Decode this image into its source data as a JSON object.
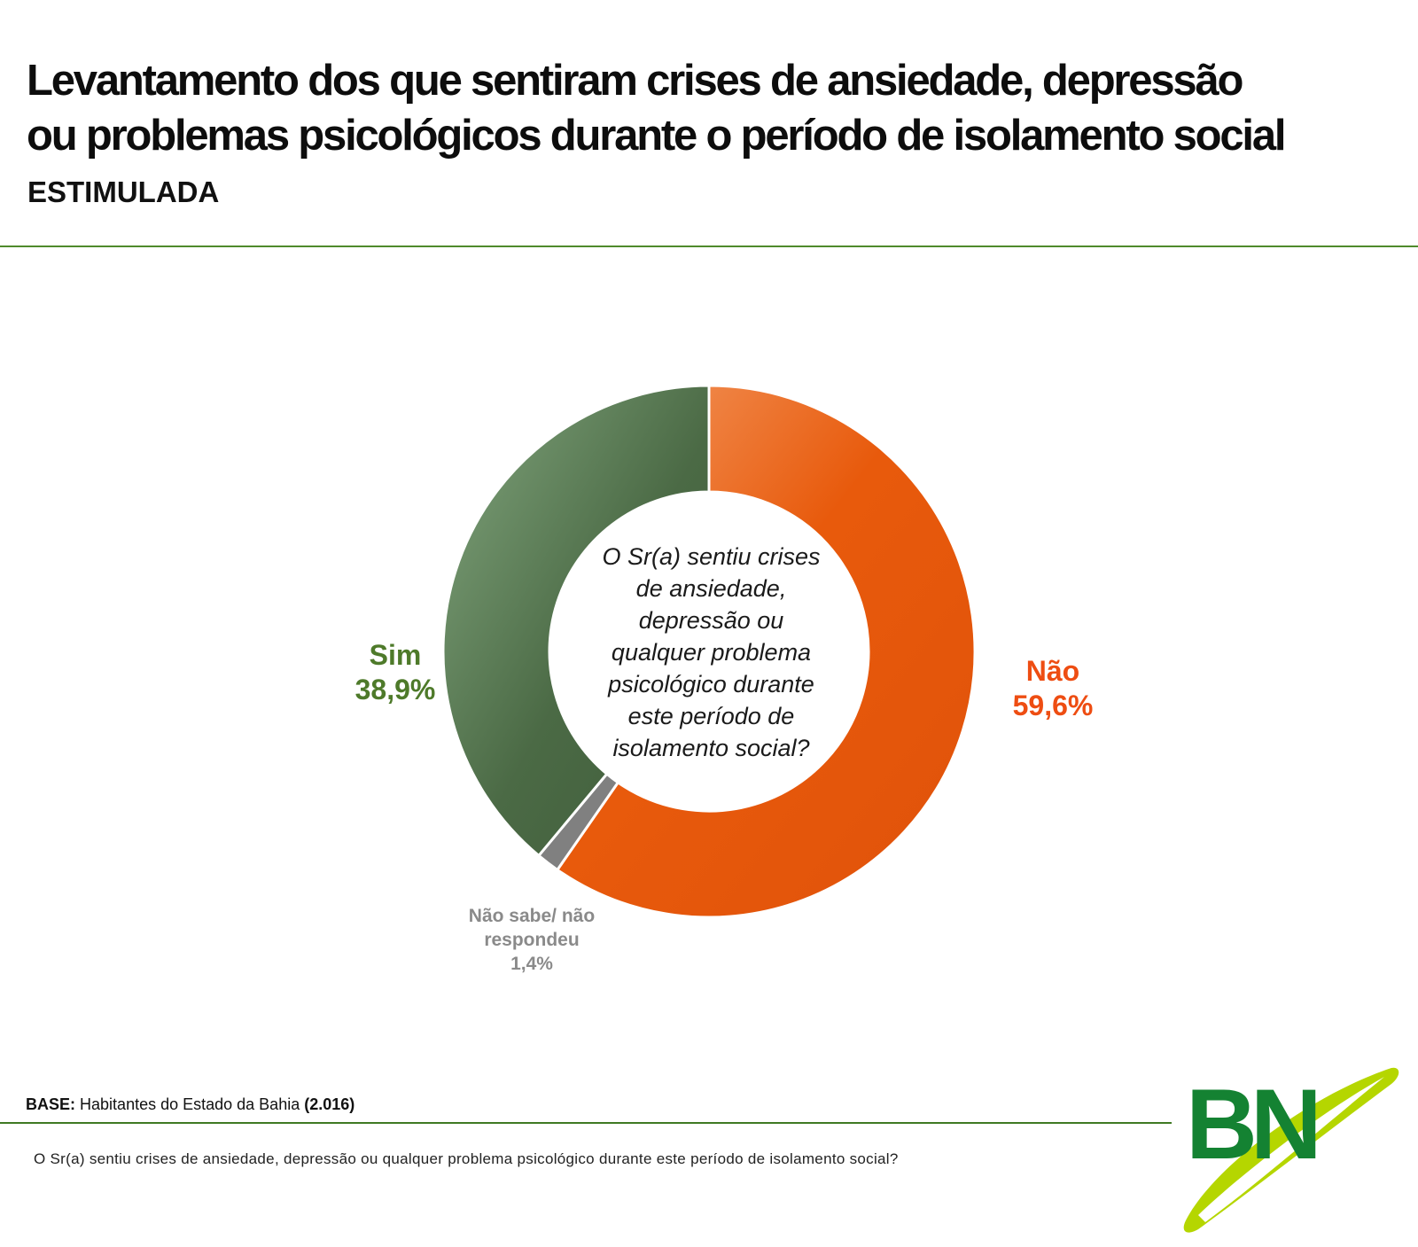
{
  "header": {
    "title_line1": "Levantamento dos que sentiram crises de ansiedade, depressão",
    "title_line2": "ou problemas psicológicos durante o período de isolamento social",
    "subtitle": "ESTIMULADA"
  },
  "chart_data": {
    "type": "pie",
    "variant": "donut",
    "center_text": "O Sr(a) sentiu crises de ansiedade, depressão ou qualquer problema psicológico durante este período de isolamento social?",
    "center_lines": [
      "O Sr(a) sentiu crises",
      "de ansiedade,",
      "depressão ou",
      "qualquer problema",
      "psicológico durante",
      "este período de",
      "isolamento social?"
    ],
    "slices": [
      {
        "name": "Não",
        "value": 59.6,
        "display": "59,6%",
        "color": "#e85a0c",
        "color_light": "#f4a06a",
        "label_color": "#ee4d12"
      },
      {
        "name": "Não sabe/ não respondeu",
        "name_lines": [
          "Não sabe/ não",
          "respondeu"
        ],
        "value": 1.4,
        "display": "1,4%",
        "color": "#808080",
        "label_color": "#8a8a8a"
      },
      {
        "name": "Sim",
        "value": 38.9,
        "display": "38,9%",
        "color": "#4b6a45",
        "color_light": "#7fa07a",
        "label_color": "#4e7a2a"
      }
    ]
  },
  "footer": {
    "base_label": "BASE:",
    "base_text": "Habitantes do Estado da Bahia",
    "base_count": "(2.016)",
    "question": "O Sr(a) sentiu crises de ansiedade, depressão ou qualquer problema psicológico durante este período de isolamento social?"
  },
  "logo": {
    "text": "BN",
    "color": "#148232",
    "swoosh_color": "#b5d600"
  }
}
